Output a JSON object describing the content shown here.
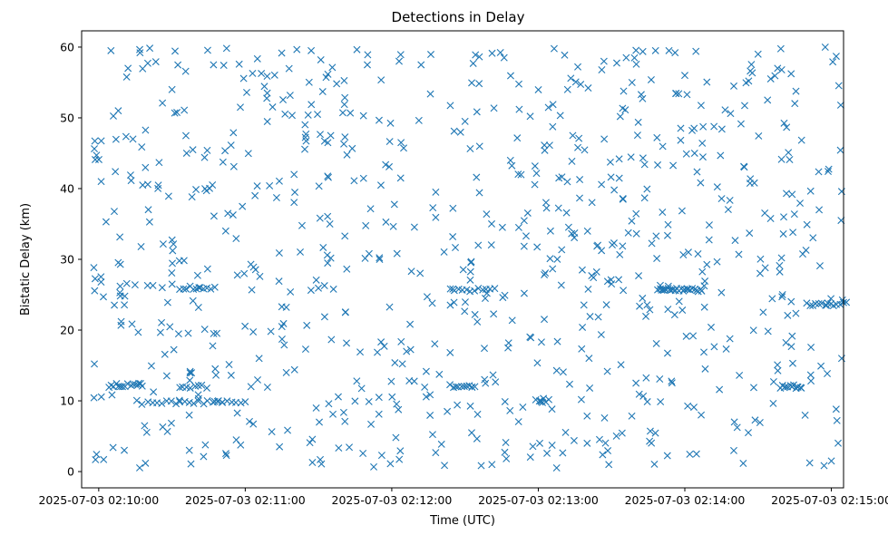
{
  "chart_data": {
    "type": "scatter",
    "title": "Detections in Delay",
    "xlabel": "Time (UTC)",
    "ylabel": "Bistatic Delay (km)",
    "x_axis": {
      "type": "datetime",
      "start": "2025-07-03 02:10:00",
      "end": "2025-07-03 02:15:00",
      "min": "2025-07-03 02:09:53",
      "max": "2025-07-03 02:15:05",
      "ticks": [
        "2025-07-03 02:10:00",
        "2025-07-03 02:11:00",
        "2025-07-03 02:12:00",
        "2025-07-03 02:13:00",
        "2025-07-03 02:14:00",
        "2025-07-03 02:15:00"
      ]
    },
    "y_axis": {
      "min": -2.3,
      "max": 62.3,
      "ticks": [
        0,
        10,
        20,
        30,
        40,
        50,
        60
      ]
    },
    "marker": "x",
    "color": "#1f77b4",
    "grid": false,
    "legend": "none",
    "series": [
      {
        "name": "",
        "seed": 7,
        "points": [
          [
            "2025-07-03 02:10:01",
            41.0
          ],
          [
            "2025-07-03 02:10:02",
            1.7
          ],
          [
            "2025-07-03 02:10:03",
            35.3
          ],
          [
            "2025-07-03 02:10:05",
            59.5
          ],
          [
            "2025-07-03 02:10:08",
            51.0
          ],
          [
            "2025-07-03 02:10:12",
            57.0
          ],
          [
            "2025-07-03 02:10:14",
            47.0
          ],
          [
            "2025-07-03 02:10:18",
            40.5
          ],
          [
            "2025-07-03 02:10:20",
            26.3
          ],
          [
            "2025-07-03 02:10:26",
            26.0
          ],
          [
            "2025-07-03 02:10:30",
            54.0
          ],
          [
            "2025-07-03 02:10:36",
            45.0
          ],
          [
            "2025-07-03 02:10:41",
            26.0
          ],
          [
            "2025-07-03 02:10:47",
            57.5
          ],
          [
            "2025-07-03 02:10:49",
            10.0
          ],
          [
            "2025-07-03 02:10:52",
            34.0
          ],
          [
            "2025-07-03 02:10:58",
            51.5
          ],
          [
            "2025-07-03 02:11:04",
            39.0
          ],
          [
            "2025-07-03 02:11:09",
            53.5
          ],
          [
            "2025-07-03 02:11:15",
            20.5
          ],
          [
            "2025-07-03 02:11:20",
            42.0
          ],
          [
            "2025-07-03 02:11:27",
            59.5
          ],
          [
            "2025-07-03 02:11:35",
            47.5
          ],
          [
            "2025-07-03 02:11:41",
            22.5
          ],
          [
            "2025-07-03 02:11:50",
            57.5
          ],
          [
            "2025-07-03 02:11:55",
            30.0
          ],
          [
            "2025-07-03 02:12:03",
            58.0
          ],
          [
            "2025-07-03 02:12:12",
            57.5
          ],
          [
            "2025-07-03 02:12:18",
            39.5
          ],
          [
            "2025-07-03 02:12:25",
            25.8
          ],
          [
            "2025-07-03 02:12:30",
            49.5
          ],
          [
            "2025-07-03 02:12:38",
            13.0
          ],
          [
            "2025-07-03 02:12:41",
            1.0
          ],
          [
            "2025-07-03 02:12:46",
            58.5
          ],
          [
            "2025-07-03 02:12:52",
            34.5
          ],
          [
            "2025-07-03 02:13:01",
            10.0
          ],
          [
            "2025-07-03 02:13:05",
            34.0
          ],
          [
            "2025-07-03 02:13:12",
            54.0
          ],
          [
            "2025-07-03 02:13:18",
            28.5
          ],
          [
            "2025-07-03 02:13:20",
            4.0
          ],
          [
            "2025-07-03 02:13:27",
            47.0
          ],
          [
            "2025-07-03 02:13:36",
            58.5
          ],
          [
            "2025-07-03 02:13:40",
            12.5
          ],
          [
            "2025-07-03 02:13:48",
            59.5
          ],
          [
            "2025-07-03 02:13:51",
            25.7
          ],
          [
            "2025-07-03 02:14:00",
            56.0
          ],
          [
            "2025-07-03 02:14:04",
            45.0
          ],
          [
            "2025-07-03 02:14:15",
            25.3
          ],
          [
            "2025-07-03 02:14:26",
            5.5
          ],
          [
            "2025-07-03 02:14:30",
            59.0
          ],
          [
            "2025-07-03 02:14:38",
            57.0
          ],
          [
            "2025-07-03 02:14:40",
            25.0
          ],
          [
            "2025-07-03 02:14:46",
            12.0
          ],
          [
            "2025-07-03 02:14:55",
            37.0
          ],
          [
            "2025-07-03 02:14:58",
            23.5
          ],
          [
            "2025-07-03 02:15:00",
            1.5
          ],
          [
            "2025-07-03 02:15:02",
            58.7
          ],
          [
            "2025-07-03 02:15:04",
            35.5
          ]
        ],
        "clusters": [
          {
            "start": "2025-07-03 02:10:05",
            "end": "2025-07-03 02:10:18",
            "y": 12.2,
            "count": 14
          },
          {
            "start": "2025-07-03 02:10:20",
            "end": "2025-07-03 02:11:00",
            "y": 9.8,
            "count": 22
          },
          {
            "start": "2025-07-03 02:10:33",
            "end": "2025-07-03 02:10:44",
            "y": 12.0,
            "count": 8
          },
          {
            "start": "2025-07-03 02:10:33",
            "end": "2025-07-03 02:10:46",
            "y": 26.0,
            "count": 10
          },
          {
            "start": "2025-07-03 02:12:24",
            "end": "2025-07-03 02:12:42",
            "y": 25.7,
            "count": 12
          },
          {
            "start": "2025-07-03 02:12:24",
            "end": "2025-07-03 02:12:34",
            "y": 12.1,
            "count": 10
          },
          {
            "start": "2025-07-03 02:12:59",
            "end": "2025-07-03 02:13:04",
            "y": 10.0,
            "count": 5
          },
          {
            "start": "2025-07-03 02:13:49",
            "end": "2025-07-03 02:14:07",
            "y": 25.7,
            "count": 24
          },
          {
            "start": "2025-07-03 02:14:39",
            "end": "2025-07-03 02:14:48",
            "y": 12.0,
            "count": 12
          },
          {
            "start": "2025-07-03 02:14:50",
            "end": "2025-07-03 02:15:06",
            "y": 23.7,
            "count": 14
          }
        ],
        "scatter": [
          {
            "start": "2025-07-03 02:09:58",
            "end": "2025-07-03 02:15:05",
            "y_min": 0.5,
            "y_max": 60.0,
            "count": 760
          }
        ]
      }
    ]
  }
}
